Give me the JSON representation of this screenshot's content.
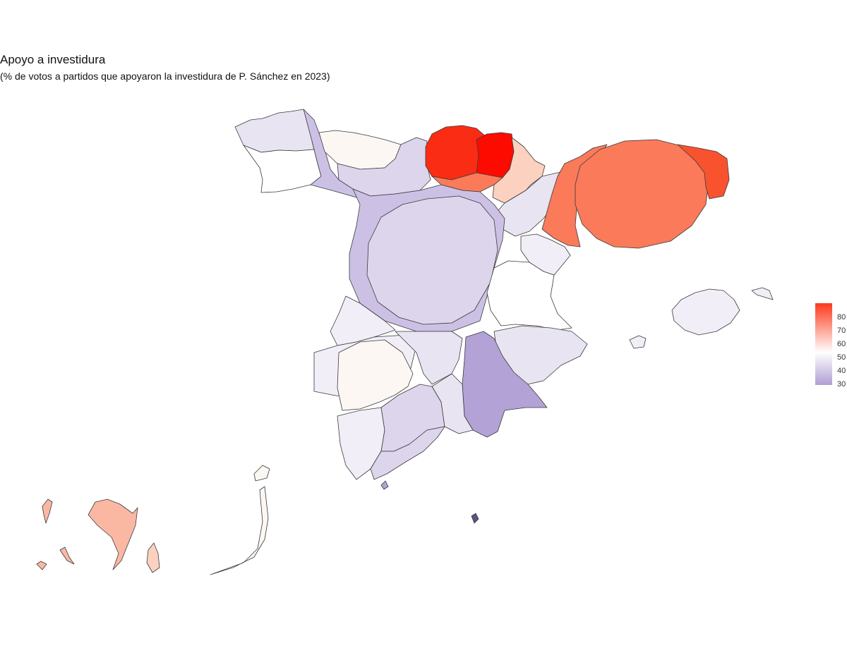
{
  "title": "Apoyo a investidura",
  "subtitle": "(% de votos a partidos que apoyaron la investidura de P. Sánchez en 2023)",
  "legend": {
    "ticks": [
      "80",
      "70",
      "60",
      "50",
      "40",
      "30"
    ],
    "low_color": "#b09ed3",
    "mid_color": "#ffffff",
    "high_color": "#fb3a1c"
  },
  "colors": {
    "purple_dark": "#b2a2d6",
    "purple_mid": "#ccc1e5",
    "purple_light": "#ddd5ec",
    "lavender": "#e8e4f2",
    "near_white": "#f1eef7",
    "cream": "#fdf7f3",
    "salmon_light": "#fcd1c0",
    "salmon": "#fab8a2",
    "orange": "#fa7a5a",
    "red_orange": "#f9522e",
    "red": "#fb2c14",
    "red_max": "#fd0b00",
    "dark": "#5b5280"
  }
}
